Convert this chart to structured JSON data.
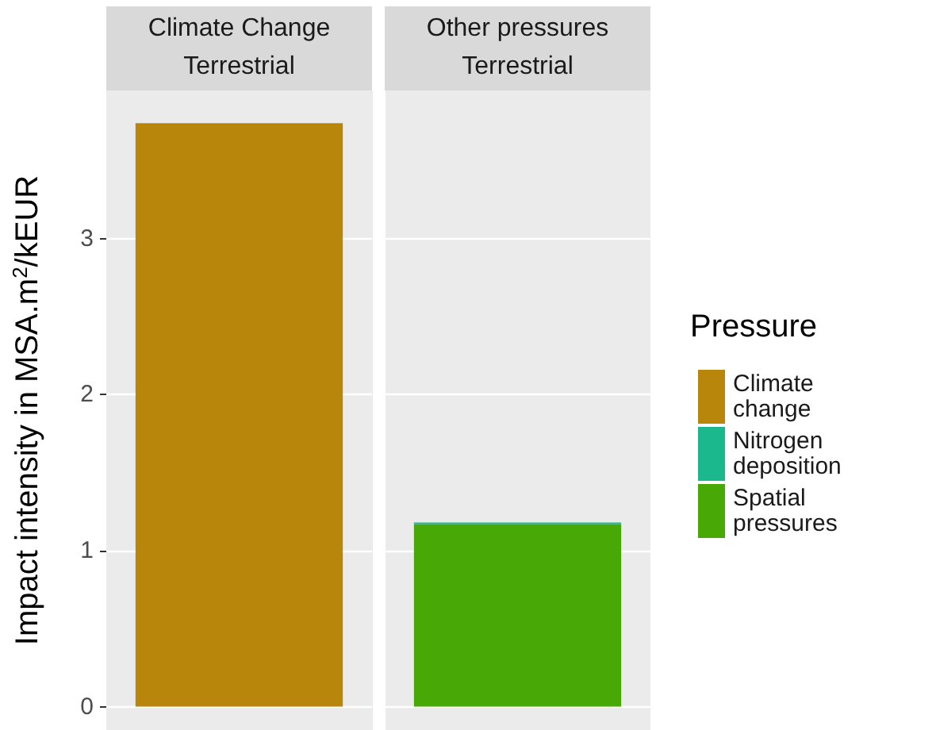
{
  "chart_data": {
    "type": "bar",
    "ylabel": "Impact intensity in MSA.m$^{2}$/kEUR",
    "categories": [
      "Climate Change\nTerrestrial",
      "Other pressures\nTerrestrial"
    ],
    "stacked": true,
    "series": [
      {
        "name": "Climate change",
        "color": "#b8860b",
        "values": [
          3.74,
          null
        ]
      },
      {
        "name": "Spatial pressures",
        "color": "#48a805",
        "values": [
          null,
          1.17
        ]
      },
      {
        "name": "Nitrogen deposition",
        "color": "#1ab88c",
        "values": [
          null,
          0.01
        ]
      }
    ],
    "ylim": [
      -0.15,
      3.95
    ],
    "yticks": [
      0,
      1,
      2,
      3
    ],
    "grid": "y",
    "legend": "right",
    "legend_title": "Pressure"
  }
}
